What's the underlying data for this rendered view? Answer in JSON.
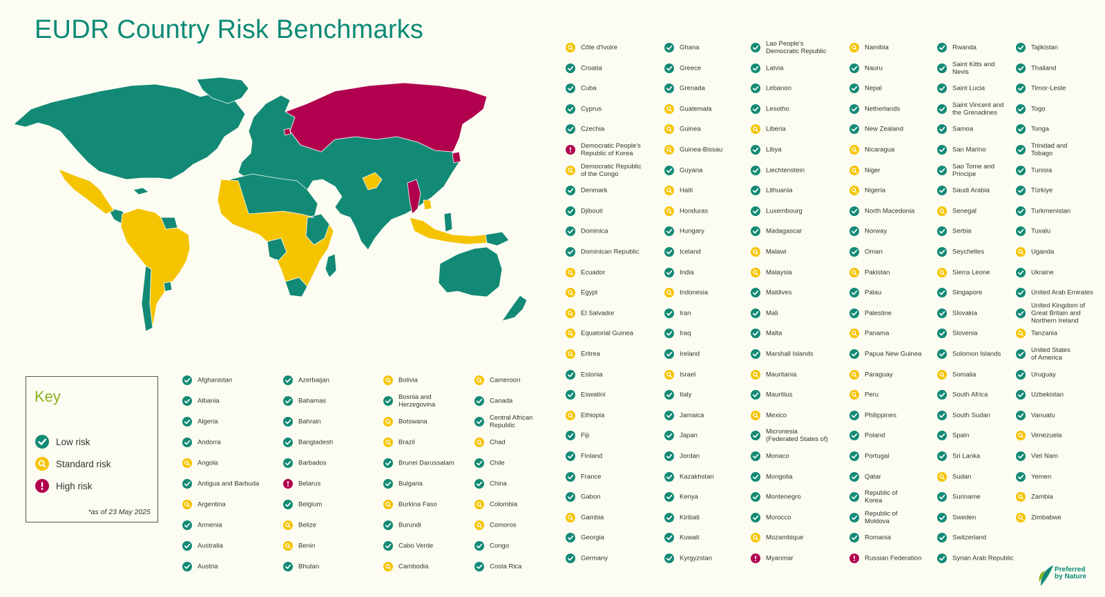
{
  "title": "EUDR Country Risk Benchmarks",
  "colors": {
    "low": "#138a75",
    "standard": "#f5c400",
    "high": "#b0004e",
    "title": "#0d8a76",
    "key_title": "#8ab31f"
  },
  "key": {
    "title": "Key",
    "items": [
      {
        "risk": "low",
        "label": "Low risk"
      },
      {
        "risk": "standard",
        "label": "Standard risk"
      },
      {
        "risk": "high",
        "label": "High risk"
      }
    ],
    "note": "*as of 23 May 2025"
  },
  "logo": {
    "line1": "Preferred",
    "line2": "by Nature"
  },
  "lower_columns": [
    [
      {
        "name": "Afghanistan",
        "risk": "low"
      },
      {
        "name": "Albania",
        "risk": "low"
      },
      {
        "name": "Algeria",
        "risk": "low"
      },
      {
        "name": "Andorra",
        "risk": "low"
      },
      {
        "name": "Angola",
        "risk": "standard"
      },
      {
        "name": "Antigua and Barbuda",
        "risk": "low"
      },
      {
        "name": "Argentina",
        "risk": "standard"
      },
      {
        "name": "Armenia",
        "risk": "low"
      },
      {
        "name": "Australia",
        "risk": "low"
      },
      {
        "name": "Austria",
        "risk": "low"
      }
    ],
    [
      {
        "name": "Azerbaijan",
        "risk": "low"
      },
      {
        "name": "Bahamas",
        "risk": "low"
      },
      {
        "name": "Bahrain",
        "risk": "low"
      },
      {
        "name": "Bangladesh",
        "risk": "low"
      },
      {
        "name": "Barbados",
        "risk": "low"
      },
      {
        "name": "Belarus",
        "risk": "high"
      },
      {
        "name": "Belgium",
        "risk": "low"
      },
      {
        "name": "Belize",
        "risk": "standard"
      },
      {
        "name": "Benin",
        "risk": "standard"
      },
      {
        "name": "Bhutan",
        "risk": "low"
      }
    ],
    [
      {
        "name": "Bolivia",
        "risk": "standard"
      },
      {
        "name": "Bosnia and\nHerzegovina",
        "risk": "low"
      },
      {
        "name": "Botswana",
        "risk": "standard"
      },
      {
        "name": "Brazil",
        "risk": "standard"
      },
      {
        "name": "Brunei Darussalam",
        "risk": "low"
      },
      {
        "name": "Bulgaria",
        "risk": "low"
      },
      {
        "name": "Burkina Faso",
        "risk": "standard"
      },
      {
        "name": "Burundi",
        "risk": "low"
      },
      {
        "name": "Cabo Verde",
        "risk": "low"
      },
      {
        "name": "Cambodia",
        "risk": "standard"
      }
    ],
    [
      {
        "name": "Cameroon",
        "risk": "standard"
      },
      {
        "name": "Canada",
        "risk": "low"
      },
      {
        "name": "Central African\nRepublic",
        "risk": "low"
      },
      {
        "name": "Chad",
        "risk": "standard"
      },
      {
        "name": "Chile",
        "risk": "low"
      },
      {
        "name": "China",
        "risk": "low"
      },
      {
        "name": "Colombia",
        "risk": "standard"
      },
      {
        "name": "Comoros",
        "risk": "standard"
      },
      {
        "name": "Congo",
        "risk": "low"
      },
      {
        "name": "Costa Rica",
        "risk": "low"
      }
    ]
  ],
  "upper_columns": [
    [
      {
        "name": "Côte d'Ivoire",
        "risk": "standard"
      },
      {
        "name": "Croatia",
        "risk": "low"
      },
      {
        "name": "Cuba",
        "risk": "low"
      },
      {
        "name": "Cyprus",
        "risk": "low"
      },
      {
        "name": "Czechia",
        "risk": "low"
      },
      {
        "name": "Democratic People's\nRepublic of Korea",
        "risk": "high"
      },
      {
        "name": "Democratic Republic\nof the Congo",
        "risk": "standard"
      },
      {
        "name": "Denmark",
        "risk": "low"
      },
      {
        "name": "Djibouti",
        "risk": "low"
      },
      {
        "name": "Dominica",
        "risk": "low"
      },
      {
        "name": "Dominican Republic",
        "risk": "low"
      },
      {
        "name": "Ecuador",
        "risk": "standard"
      },
      {
        "name": "Egypt",
        "risk": "standard"
      },
      {
        "name": "El Salvador",
        "risk": "standard"
      },
      {
        "name": "Equatorial Guinea",
        "risk": "standard"
      },
      {
        "name": "Eritrea",
        "risk": "standard"
      },
      {
        "name": "Estonia",
        "risk": "low"
      },
      {
        "name": "Eswatini",
        "risk": "low"
      },
      {
        "name": "Ethiopia",
        "risk": "standard"
      },
      {
        "name": "Fiji",
        "risk": "low"
      },
      {
        "name": "Finland",
        "risk": "low"
      },
      {
        "name": "France",
        "risk": "low"
      },
      {
        "name": "Gabon",
        "risk": "low"
      },
      {
        "name": "Gambia",
        "risk": "standard"
      },
      {
        "name": "Georgia",
        "risk": "low"
      },
      {
        "name": "Germany",
        "risk": "low"
      }
    ],
    [
      {
        "name": "Ghana",
        "risk": "low"
      },
      {
        "name": "Greece",
        "risk": "low"
      },
      {
        "name": "Grenada",
        "risk": "low"
      },
      {
        "name": "Guatemala",
        "risk": "standard"
      },
      {
        "name": "Guinea",
        "risk": "standard"
      },
      {
        "name": "Guinea-Bissau",
        "risk": "standard"
      },
      {
        "name": "Guyana",
        "risk": "low"
      },
      {
        "name": "Haiti",
        "risk": "standard"
      },
      {
        "name": "Honduras",
        "risk": "standard"
      },
      {
        "name": "Hungary",
        "risk": "low"
      },
      {
        "name": "Iceland",
        "risk": "low"
      },
      {
        "name": "India",
        "risk": "low"
      },
      {
        "name": "Indonesia",
        "risk": "standard"
      },
      {
        "name": "Iran",
        "risk": "low"
      },
      {
        "name": "Iraq",
        "risk": "low"
      },
      {
        "name": "Ireland",
        "risk": "low"
      },
      {
        "name": "Israel",
        "risk": "standard"
      },
      {
        "name": "Italy",
        "risk": "low"
      },
      {
        "name": "Jamaica",
        "risk": "low"
      },
      {
        "name": "Japan",
        "risk": "low"
      },
      {
        "name": "Jordan",
        "risk": "low"
      },
      {
        "name": "Kazakhstan",
        "risk": "low"
      },
      {
        "name": "Kenya",
        "risk": "low"
      },
      {
        "name": "Kiribati",
        "risk": "low"
      },
      {
        "name": "Kuwait",
        "risk": "low"
      },
      {
        "name": "Kyrgyzstan",
        "risk": "low"
      }
    ],
    [
      {
        "name": "Lao People's\nDemocratic Republic",
        "risk": "low"
      },
      {
        "name": "Latvia",
        "risk": "low"
      },
      {
        "name": "Lebanon",
        "risk": "low"
      },
      {
        "name": "Lesotho",
        "risk": "low"
      },
      {
        "name": "Liberia",
        "risk": "standard"
      },
      {
        "name": "Libya",
        "risk": "low"
      },
      {
        "name": "Liechtenstein",
        "risk": "low"
      },
      {
        "name": "Lithuania",
        "risk": "low"
      },
      {
        "name": "Luxembourg",
        "risk": "low"
      },
      {
        "name": "Madagascar",
        "risk": "low"
      },
      {
        "name": "Malawi",
        "risk": "standard"
      },
      {
        "name": "Malaysia",
        "risk": "standard"
      },
      {
        "name": "Maldives",
        "risk": "low"
      },
      {
        "name": "Mali",
        "risk": "low"
      },
      {
        "name": "Malta",
        "risk": "low"
      },
      {
        "name": "Marshall Islands",
        "risk": "low"
      },
      {
        "name": "Mauritania",
        "risk": "standard"
      },
      {
        "name": "Mauritius",
        "risk": "low"
      },
      {
        "name": "Mexico",
        "risk": "standard"
      },
      {
        "name": "Micronesia\n(Federated States of)",
        "risk": "low"
      },
      {
        "name": "Monaco",
        "risk": "low"
      },
      {
        "name": "Mongolia",
        "risk": "low"
      },
      {
        "name": "Montenegro",
        "risk": "low"
      },
      {
        "name": "Morocco",
        "risk": "low"
      },
      {
        "name": "Mozambique",
        "risk": "standard"
      },
      {
        "name": "Myanmar",
        "risk": "high"
      }
    ],
    [
      {
        "name": "Namibia",
        "risk": "standard"
      },
      {
        "name": "Nauru",
        "risk": "low"
      },
      {
        "name": "Nepal",
        "risk": "low"
      },
      {
        "name": "Netherlands",
        "risk": "low"
      },
      {
        "name": "New Zealand",
        "risk": "low"
      },
      {
        "name": "Nicaragua",
        "risk": "standard"
      },
      {
        "name": "Niger",
        "risk": "standard"
      },
      {
        "name": "Nigeria",
        "risk": "standard"
      },
      {
        "name": "North Macedonia",
        "risk": "low"
      },
      {
        "name": "Norway",
        "risk": "low"
      },
      {
        "name": "Oman",
        "risk": "low"
      },
      {
        "name": "Pakistan",
        "risk": "standard"
      },
      {
        "name": "Palau",
        "risk": "low"
      },
      {
        "name": "Palestine",
        "risk": "low"
      },
      {
        "name": "Panama",
        "risk": "standard"
      },
      {
        "name": "Papua New Guinea",
        "risk": "low"
      },
      {
        "name": "Paraguay",
        "risk": "standard"
      },
      {
        "name": "Peru",
        "risk": "standard"
      },
      {
        "name": "Philippines",
        "risk": "low"
      },
      {
        "name": "Poland",
        "risk": "low"
      },
      {
        "name": "Portugal",
        "risk": "low"
      },
      {
        "name": "Qatar",
        "risk": "low"
      },
      {
        "name": "Republic of\nKorea",
        "risk": "low"
      },
      {
        "name": "Republic of\nMoldova",
        "risk": "low"
      },
      {
        "name": "Romania",
        "risk": "low"
      },
      {
        "name": "Russian Federation",
        "risk": "high"
      }
    ],
    [
      {
        "name": "Rwanda",
        "risk": "low"
      },
      {
        "name": "Saint Kitts and\nNevis",
        "risk": "low"
      },
      {
        "name": "Saint Lucia",
        "risk": "low"
      },
      {
        "name": "Saint Vincent and\nthe Grenadines",
        "risk": "low"
      },
      {
        "name": "Samoa",
        "risk": "low"
      },
      {
        "name": "San Marino",
        "risk": "low"
      },
      {
        "name": "Sao Tome and\nPrincipe",
        "risk": "low"
      },
      {
        "name": "Saudi Arabia",
        "risk": "low"
      },
      {
        "name": "Senegal",
        "risk": "standard"
      },
      {
        "name": "Serbia",
        "risk": "low"
      },
      {
        "name": "Seychelles",
        "risk": "low"
      },
      {
        "name": "Sierra Leone",
        "risk": "standard"
      },
      {
        "name": "Singapore",
        "risk": "low"
      },
      {
        "name": "Slovakia",
        "risk": "low"
      },
      {
        "name": "Slovenia",
        "risk": "low"
      },
      {
        "name": "Solomon Islands",
        "risk": "low"
      },
      {
        "name": "Somalia",
        "risk": "standard"
      },
      {
        "name": "South Africa",
        "risk": "low"
      },
      {
        "name": "South Sudan",
        "risk": "low"
      },
      {
        "name": "Spain",
        "risk": "low"
      },
      {
        "name": "Sri Lanka",
        "risk": "low"
      },
      {
        "name": "Sudan",
        "risk": "standard"
      },
      {
        "name": "Suriname",
        "risk": "low"
      },
      {
        "name": "Sweden",
        "risk": "low"
      },
      {
        "name": "Switzerland",
        "risk": "low"
      },
      {
        "name": "Syrian Arab Republic",
        "risk": "low"
      }
    ],
    [
      {
        "name": "Tajikistan",
        "risk": "low"
      },
      {
        "name": "Thailand",
        "risk": "low"
      },
      {
        "name": "Timor-Leste",
        "risk": "low"
      },
      {
        "name": "Togo",
        "risk": "low"
      },
      {
        "name": "Tonga",
        "risk": "low"
      },
      {
        "name": "Trinidad and\nTobago",
        "risk": "low"
      },
      {
        "name": "Tunisia",
        "risk": "low"
      },
      {
        "name": "Türkiye",
        "risk": "low"
      },
      {
        "name": "Turkmenistan",
        "risk": "low"
      },
      {
        "name": "Tuvalu",
        "risk": "low"
      },
      {
        "name": "Uganda",
        "risk": "standard"
      },
      {
        "name": "Ukraine",
        "risk": "low"
      },
      {
        "name": "United Arab Emirates",
        "risk": "low"
      },
      {
        "name": "United Kingdom of\nGreat Britain and\nNorthern Ireland",
        "risk": "low"
      },
      {
        "name": "Tanzania",
        "risk": "standard"
      },
      {
        "name": "United States\nof America",
        "risk": "low"
      },
      {
        "name": "Uruguay",
        "risk": "low"
      },
      {
        "name": "Uzbekistan",
        "risk": "low"
      },
      {
        "name": "Vanuatu",
        "risk": "low"
      },
      {
        "name": "Venezuela",
        "risk": "standard"
      },
      {
        "name": "Viet Nam",
        "risk": "low"
      },
      {
        "name": "Yemen",
        "risk": "low"
      },
      {
        "name": "Zambia",
        "risk": "standard"
      },
      {
        "name": "Zimbabwe",
        "risk": "standard"
      }
    ]
  ]
}
